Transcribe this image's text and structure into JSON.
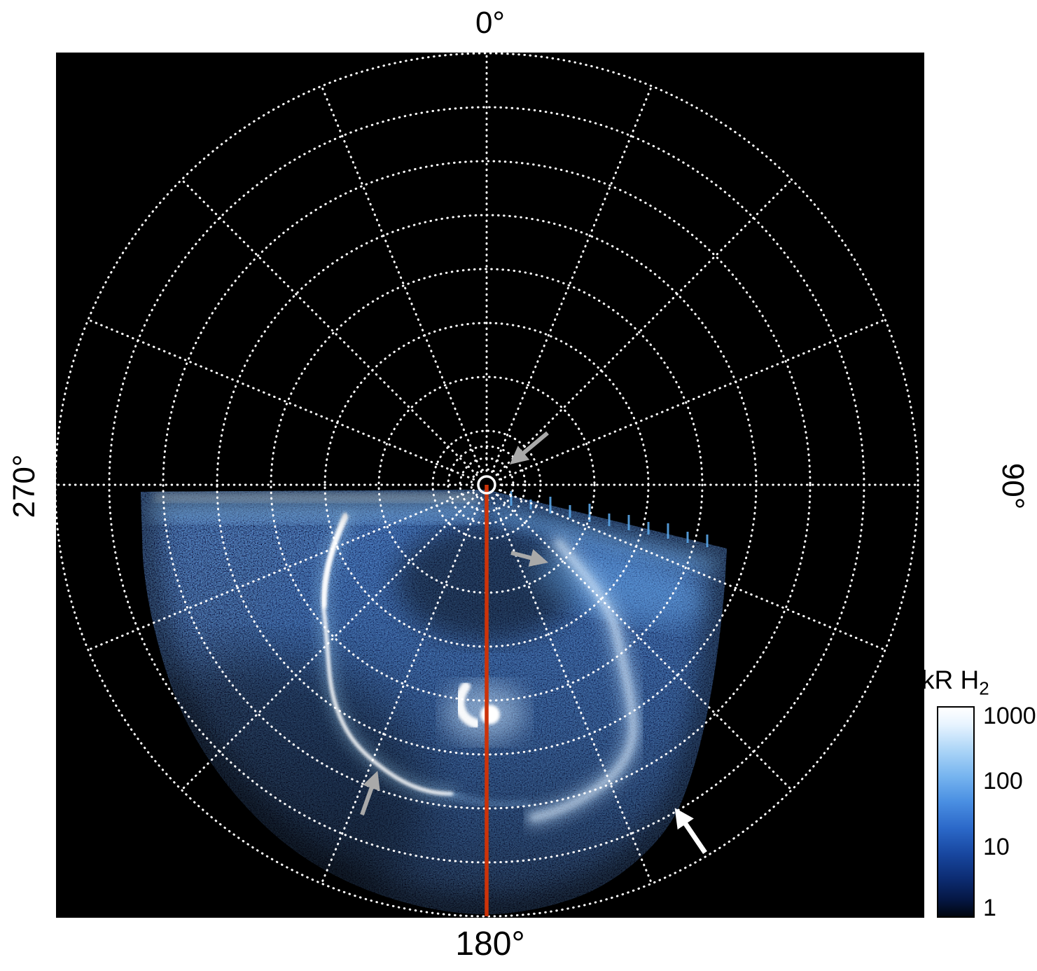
{
  "figure": {
    "background_color": "#ffffff",
    "plot_background_color": "#000000",
    "grid_color": "#ffffff",
    "meridian_line_color": "#cc3309",
    "arrow_gray_color": "#a9a9a9",
    "arrow_white_color": "#ffffff"
  },
  "labels": {
    "top": "0°",
    "right": "90°",
    "bottom": "180°",
    "left": "270°"
  },
  "colorbar": {
    "title_main": "kR H",
    "title_sub": "2",
    "ticks": [
      "1000",
      "100",
      "10",
      "1"
    ]
  },
  "chart_data": {
    "type": "heatmap",
    "subtype": "polar-projection auroral emission image",
    "title": "",
    "angular_axis": {
      "tick_labels": [
        "0°",
        "90°",
        "180°",
        "270°"
      ],
      "spoke_interval_deg": 22.5,
      "zero_direction": "up",
      "grid_style": "dotted white"
    },
    "radial_axis": {
      "major_rings": 8,
      "extra_inner_rings": 3,
      "grid_style": "dotted white"
    },
    "colorbar": {
      "label": "kR H2",
      "scale": "log",
      "range": [
        1,
        1000
      ],
      "tick_values": [
        1000,
        100,
        10,
        1
      ],
      "colormap": "black -> dark blue -> blue -> white"
    },
    "coverage": {
      "azimuth_deg": [
        95,
        268
      ],
      "description": "H2 emission data fills roughly the lower half of the polar map (between 90° and 270° through 180°); the upper half contains no data (black)."
    },
    "features": [
      {
        "name": "main-auroral-arc",
        "description": "bright narrow white-blue arc on the left (dusk) side of the auroral oval, between the 180° and 270° meridians at mid radius"
      },
      {
        "name": "diffuse-auroral-arc",
        "description": "broad diffuse emission arc on the right side of the oval"
      },
      {
        "name": "central-bright-spot",
        "description": "compact white emission blob near the oval center, below the map center along the 180° meridian"
      },
      {
        "name": "reference-meridian",
        "description": "solid red-orange line drawn along the 180° meridian from map center to outer edge",
        "color": "#cc3309"
      },
      {
        "name": "center-marker",
        "description": "small white circle marking the map center/pole"
      },
      {
        "name": "annotation-arrows",
        "count": 4,
        "colors": [
          "gray",
          "gray",
          "gray",
          "white"
        ],
        "description": "three gray arrows point at the center marker, the inner diffuse emission and the faint outer arc; one white arrow points at the outer emission boundary in the lower right"
      }
    ]
  }
}
